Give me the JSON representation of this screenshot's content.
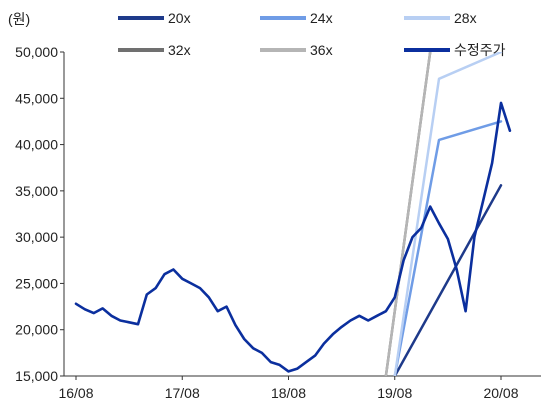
{
  "chart_data": {
    "type": "line",
    "unit_label": "(원)",
    "ylim": [
      15000,
      50000
    ],
    "yticks": [
      "50,000",
      "45,000",
      "40,000",
      "35,000",
      "30,000",
      "25,000",
      "20,000",
      "15,000"
    ],
    "xticks": [
      "16/08",
      "17/08",
      "18/08",
      "19/08",
      "20/08"
    ],
    "x_range": [
      "2016-08",
      "2020-12"
    ],
    "series": [
      {
        "name": "20x",
        "color": "#1e3a8a",
        "values": [
          [
            "2019-08",
            15000
          ],
          [
            "2020-08",
            35600
          ]
        ]
      },
      {
        "name": "24x",
        "color": "#6f9ce6",
        "values": [
          [
            "2019-08",
            15000
          ],
          [
            "2020-01",
            40500
          ],
          [
            "2020-08",
            42500
          ]
        ]
      },
      {
        "name": "28x",
        "color": "#b8cff3",
        "values": [
          [
            "2019-08",
            15000
          ],
          [
            "2020-01",
            47100
          ],
          [
            "2020-08",
            50000
          ]
        ]
      },
      {
        "name": "32x",
        "color": "#707070",
        "values": [
          [
            "2019-07",
            15000
          ],
          [
            "2019-12",
            50000
          ]
        ]
      },
      {
        "name": "36x",
        "color": "#b5b5b5",
        "values": [
          [
            "2019-07",
            15000
          ],
          [
            "2019-12",
            50000
          ]
        ]
      },
      {
        "name": "수정주가",
        "color": "#0b2f9e",
        "values": [
          [
            "2016-08",
            22800
          ],
          [
            "2016-09",
            22200
          ],
          [
            "2016-10",
            21800
          ],
          [
            "2016-11",
            22300
          ],
          [
            "2016-12",
            21500
          ],
          [
            "2017-01",
            21000
          ],
          [
            "2017-02",
            20800
          ],
          [
            "2017-03",
            20600
          ],
          [
            "2017-04",
            23800
          ],
          [
            "2017-05",
            24500
          ],
          [
            "2017-06",
            26000
          ],
          [
            "2017-07",
            26500
          ],
          [
            "2017-08",
            25500
          ],
          [
            "2017-09",
            25000
          ],
          [
            "2017-10",
            24500
          ],
          [
            "2017-11",
            23500
          ],
          [
            "2017-12",
            22000
          ],
          [
            "2018-01",
            22500
          ],
          [
            "2018-02",
            20500
          ],
          [
            "2018-03",
            19000
          ],
          [
            "2018-04",
            18000
          ],
          [
            "2018-05",
            17500
          ],
          [
            "2018-06",
            16500
          ],
          [
            "2018-07",
            16200
          ],
          [
            "2018-08",
            15500
          ],
          [
            "2018-09",
            15800
          ],
          [
            "2018-10",
            16500
          ],
          [
            "2018-11",
            17200
          ],
          [
            "2018-12",
            18500
          ],
          [
            "2019-01",
            19500
          ],
          [
            "2019-02",
            20300
          ],
          [
            "2019-03",
            21000
          ],
          [
            "2019-04",
            21500
          ],
          [
            "2019-05",
            21000
          ],
          [
            "2019-06",
            21500
          ],
          [
            "2019-07",
            22000
          ],
          [
            "2019-08",
            23500
          ],
          [
            "2019-09",
            27500
          ],
          [
            "2019-10",
            30000
          ],
          [
            "2019-11",
            31000
          ],
          [
            "2019-12",
            33300
          ],
          [
            "2020-01",
            31500
          ],
          [
            "2020-02",
            29800
          ],
          [
            "2020-03",
            26500
          ],
          [
            "2020-04",
            22000
          ],
          [
            "2020-05",
            30000
          ],
          [
            "2020-06",
            34000
          ],
          [
            "2020-07",
            38000
          ],
          [
            "2020-08",
            44500
          ],
          [
            "2020-09",
            41500
          ]
        ]
      }
    ]
  }
}
